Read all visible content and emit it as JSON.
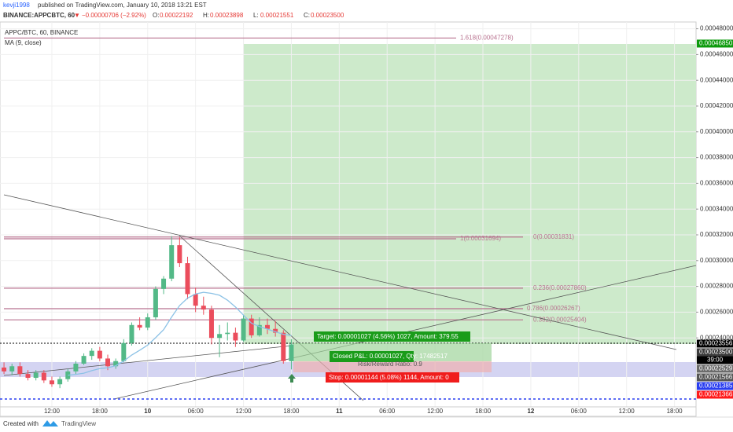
{
  "header": {
    "author": "kevji1998",
    "published": "published on TradingView.com, January 10, 2018 13:21 EST",
    "symbol": "BINANCE:APPCBTC, 60",
    "arrow": "▼",
    "change": "−0.00000706 (−2.92%)",
    "ohlc": [
      [
        "O:",
        "0.00022192"
      ],
      [
        "H:",
        "0.00023898"
      ],
      [
        "L:",
        "0.00021551"
      ],
      [
        "C:",
        "0.00023500"
      ]
    ]
  },
  "chart_data": {
    "type": "candlestick",
    "legend_title": "APPC/BTC, 60, BINANCE",
    "indicator": "MA (9, close)",
    "x": [
      0,
      1,
      2,
      3,
      4,
      5,
      6,
      7,
      8,
      9,
      10,
      11,
      12,
      13,
      14,
      15,
      16,
      17,
      18,
      19,
      20,
      21,
      22,
      23,
      24,
      25,
      26,
      27,
      28,
      29,
      30,
      31,
      32,
      33,
      34,
      35,
      36
    ],
    "open": [
      0.000217,
      0.000214,
      0.000218,
      0.000212,
      0.000209,
      0.000213,
      0.000207,
      0.000204,
      0.000208,
      0.000214,
      0.00022,
      0.000226,
      0.00023,
      0.000224,
      0.000218,
      0.000222,
      0.000236,
      0.00025,
      0.000248,
      0.000256,
      0.000278,
      0.000286,
      0.000312,
      0.000298,
      0.000274,
      0.000265,
      0.000262,
      0.00024,
      0.000243,
      0.000244,
      0.000238,
      0.000255,
      0.000242,
      0.00025,
      0.000247,
      0.000244,
      0.00022192
    ],
    "high": [
      0.000221,
      0.00022,
      0.000221,
      0.000215,
      0.000215,
      0.000215,
      0.00021,
      0.00021,
      0.000216,
      0.000222,
      0.000228,
      0.000232,
      0.000233,
      0.000227,
      0.000224,
      0.000239,
      0.000252,
      0.000256,
      0.000259,
      0.00028,
      0.000288,
      0.000319,
      0.000318,
      0.000303,
      0.000279,
      0.000272,
      0.000265,
      0.00025,
      0.000252,
      0.000248,
      0.000258,
      0.000258,
      0.000256,
      0.000255,
      0.000253,
      0.000246,
      0.00023898
    ],
    "low": [
      0.000212,
      0.000211,
      0.00021,
      0.000207,
      0.000207,
      0.000205,
      0.000202,
      0.000201,
      0.000206,
      0.000212,
      0.000219,
      0.000223,
      0.000222,
      0.000215,
      0.000216,
      0.000221,
      0.000234,
      0.000246,
      0.000246,
      0.000254,
      0.000274,
      0.000284,
      0.000295,
      0.00027,
      0.00026,
      0.000258,
      0.000235,
      0.000225,
      0.000238,
      0.000233,
      0.000237,
      0.00024,
      0.000241,
      0.000243,
      0.000241,
      0.00022,
      0.00021551
    ],
    "close": [
      0.000214,
      0.000218,
      0.000212,
      0.000209,
      0.000213,
      0.000207,
      0.000204,
      0.000208,
      0.000214,
      0.00022,
      0.000226,
      0.00023,
      0.000224,
      0.000218,
      0.000222,
      0.000236,
      0.00025,
      0.000248,
      0.000256,
      0.000278,
      0.000286,
      0.000312,
      0.000298,
      0.000274,
      0.000265,
      0.000262,
      0.00024,
      0.000243,
      0.000244,
      0.000238,
      0.000255,
      0.000242,
      0.00025,
      0.000247,
      0.000244,
      0.000222,
      0.000235
    ],
    "ma": [
      null,
      null,
      null,
      null,
      null,
      null,
      null,
      null,
      0.000211,
      0.0002117,
      0.0002126,
      0.0002146,
      0.0002162,
      0.0002168,
      0.0002184,
      0.000222,
      0.0002267,
      0.0002304,
      0.0002344,
      0.0002402,
      0.0002464,
      0.0002562,
      0.0002651,
      0.0002709,
      0.0002741,
      0.0002754,
      0.0002746,
      0.0002731,
      0.0002693,
      0.000264,
      0.0002577,
      0.0002514,
      0.0002488,
      0.0002468,
      0.0002448,
      0.0002428,
      0.0002419
    ],
    "up_color": "#53b987",
    "down_color": "#eb4d5c",
    "ma_color": "#8cc2e6",
    "xlim": [
      -0.5,
      86.7
    ],
    "ylim": [
      0.00018646,
      0.00048525
    ],
    "xticks": [
      {
        "value": 6,
        "label": "12:00"
      },
      {
        "value": 12,
        "label": "18:00"
      },
      {
        "value": 18,
        "label": "10"
      },
      {
        "value": 24,
        "label": "06:00"
      },
      {
        "value": 30,
        "label": "12:00"
      },
      {
        "value": 36,
        "label": "18:00"
      },
      {
        "value": 42,
        "label": "11"
      },
      {
        "value": 48,
        "label": "06:00"
      },
      {
        "value": 54,
        "label": "12:00"
      },
      {
        "value": 60,
        "label": "18:00"
      },
      {
        "value": 66,
        "label": "12"
      },
      {
        "value": 72,
        "label": "06:00"
      },
      {
        "value": 78,
        "label": "12:00"
      },
      {
        "value": 84,
        "label": "18:00"
      }
    ],
    "yticks": [
      {
        "value": 0.00024,
        "label": "0.00024000"
      },
      {
        "value": 0.00026,
        "label": "0.00026000"
      },
      {
        "value": 0.00028,
        "label": "0.00028000"
      },
      {
        "value": 0.0003,
        "label": "0.00030000"
      },
      {
        "value": 0.00032,
        "label": "0.00032000"
      },
      {
        "value": 0.00034,
        "label": "0.00034000"
      },
      {
        "value": 0.00036,
        "label": "0.00036000"
      },
      {
        "value": 0.00038,
        "label": "0.00038000"
      },
      {
        "value": 0.0004,
        "label": "0.00040000"
      },
      {
        "value": 0.00042,
        "label": "0.00042000"
      },
      {
        "value": 0.00044,
        "label": "0.00044000"
      },
      {
        "value": 0.00046,
        "label": "0.00046000"
      },
      {
        "value": 0.00048,
        "label": "0.00048000"
      }
    ],
    "price_labels": [
      {
        "value": 0.0004685,
        "label": "0.00046850",
        "color": "#0c9a0c"
      },
      {
        "value": 0.00023556,
        "label": "0.00023556",
        "color": "#000000"
      },
      {
        "value": 0.000235,
        "label": "0.00023500",
        "color": "#3c3c3c"
      },
      {
        "value": 0.00022529,
        "label": "0.00022529",
        "color": "#6b6b6b"
      },
      {
        "value": 0.00021566,
        "label": "0.00021566",
        "color": "#555555"
      },
      {
        "value": 0.00021366,
        "label": "0.00021366",
        "color": "#ff1a1a"
      },
      {
        "value": 0.00021385,
        "label": "0.00021385",
        "color": "#2a3ef0"
      }
    ],
    "countdown": "39:00",
    "fib": [
      {
        "price": 0.00047278,
        "label": "1.618(0.00047278)"
      },
      {
        "price": 0.00031694,
        "label": "1(0.00031694)"
      },
      {
        "price": 0.00031831,
        "label": "0(0.00031831)"
      },
      {
        "price": 0.0002786,
        "label": "0.236(0.00027860)"
      },
      {
        "price": 0.00026267,
        "label": "0.786(0.00026267)"
      },
      {
        "price": 0.00025404,
        "label": "0.382(0.00025404)"
      }
    ],
    "fib_color": "#b8728f",
    "target": "Target: 0.00001027 (4.56%) 1027, Amount: 379.55",
    "pnl": "Closed P&L: 0.00001027, Qty: 17482517",
    "rr": "Risk/Reward Ratio: 0.9",
    "stop": "Stop: 0.00001144 (5.08%) 1144, Amount: 0"
  },
  "footer": {
    "created": "Created with",
    "brand": "TradingView"
  }
}
